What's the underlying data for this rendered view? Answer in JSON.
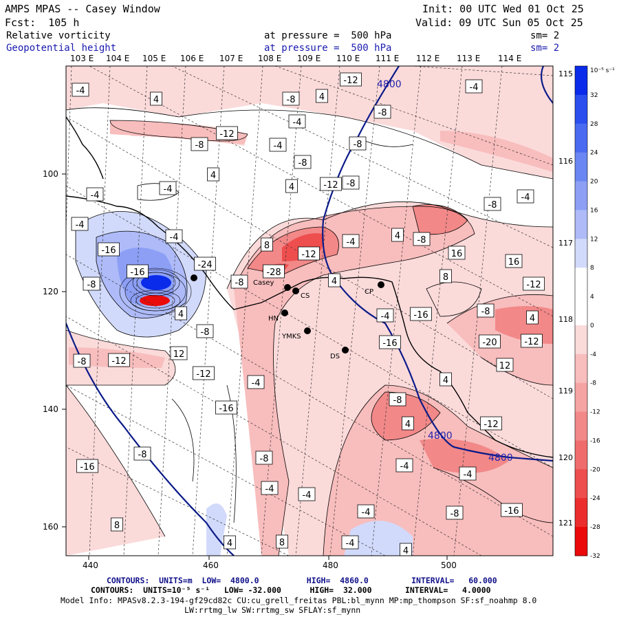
{
  "header": {
    "title": "AMPS MPAS -- Casey Window",
    "init": "Init: 00 UTC Wed 01 Oct 25",
    "fcst": "Fcst:  105 h",
    "valid": "Valid: 09 UTC Sun 05 Oct 25",
    "field1": "Relative vorticity",
    "field1_level": "at pressure =  500 hPa",
    "field1_sm": "sm= 2",
    "field2": "Geopotential height",
    "field2_level": "at pressure =  500 hPa",
    "field2_sm": "sm= 2"
  },
  "lon_labels": [
    "103 E",
    "104 E",
    "105 E",
    "106 E",
    "107 E",
    "108 E",
    "109 E",
    "110 E",
    "111 E",
    "112 E",
    "113 E",
    "114 E"
  ],
  "lat_labels_right": [
    "115 E",
    "116 E",
    "117 E",
    "118 E",
    "119 E",
    "120 E",
    "121 E"
  ],
  "axes": {
    "x_ticks": [
      "440",
      "460",
      "480",
      "500"
    ],
    "y_ticks": [
      "100",
      "120",
      "140",
      "160"
    ]
  },
  "stations": [
    "Casey",
    "CS",
    "CP",
    "HN",
    "YMKS",
    "DS"
  ],
  "contour_labels": {
    "height": [
      "4800",
      "4800",
      "4800"
    ],
    "vorticity": [
      "-4",
      "4",
      "-8",
      "-12",
      "-4",
      "4",
      "-4",
      "-8",
      "-12",
      "-8",
      "-4",
      "-8",
      "-8",
      "4",
      "-12",
      "-8",
      "4",
      "-4",
      "-4",
      "-8",
      "-4",
      "-4",
      "4",
      "-4",
      "8",
      "-4",
      "-8",
      "-16",
      "-12",
      "-16",
      "-28",
      "16",
      "16",
      "-24",
      "-8",
      "8",
      "-8",
      "4",
      "-12",
      "-4",
      "-16",
      "-8",
      "4",
      "4",
      "-8",
      "-20",
      "-12",
      "-16",
      "12",
      "-12",
      "-8",
      "12",
      "-12",
      "4",
      "-4",
      "-8",
      "-16",
      "4",
      "-12",
      "-8",
      "-4",
      "-8",
      "-16",
      "-4",
      "-4",
      "-4",
      "-16",
      "-4",
      "-8",
      "8",
      "4",
      "8",
      "-4",
      "4"
    ]
  },
  "colorbar": {
    "unit": "10⁻⁵ s⁻¹",
    "labels": [
      "32",
      "28",
      "24",
      "20",
      "16",
      "12",
      "8",
      "4",
      "0",
      "-4",
      "-8",
      "-12",
      "-16",
      "-20",
      "-24",
      "-28",
      "-32"
    ],
    "colors": [
      "#0a2bea",
      "#2a4fee",
      "#4a6af0",
      "#6a86f2",
      "#8c9ff5",
      "#aebbf8",
      "#d2dafb",
      "#ffffff",
      "#ffffff",
      "#fbdada",
      "#f8bdbd",
      "#f5a3a3",
      "#f28888",
      "#f06c6c",
      "#ee4e4e",
      "#ec2d2d",
      "#ea0a0a"
    ]
  },
  "footer": {
    "line1": "CONTOURS:  UNITS=m  LOW=  4800.0          HIGH=  4860.0         INTERVAL=   60.000",
    "line2": "CONTOURS:  UNITS=10⁻⁵ s⁻¹   LOW= -32.000      HIGH=  32.000       INTERVAL=   4.0000",
    "line3": "Model Info: MPASv8.2.3-194-gf29cd82c CU:cu_grell_freitas PBL:bl_mynn MP:mp_thompson SF:sf_noahmp 8.0",
    "line4": "LW:rrtmg_lw SW:rrtmg_sw SFLAY:sf_mynn"
  }
}
